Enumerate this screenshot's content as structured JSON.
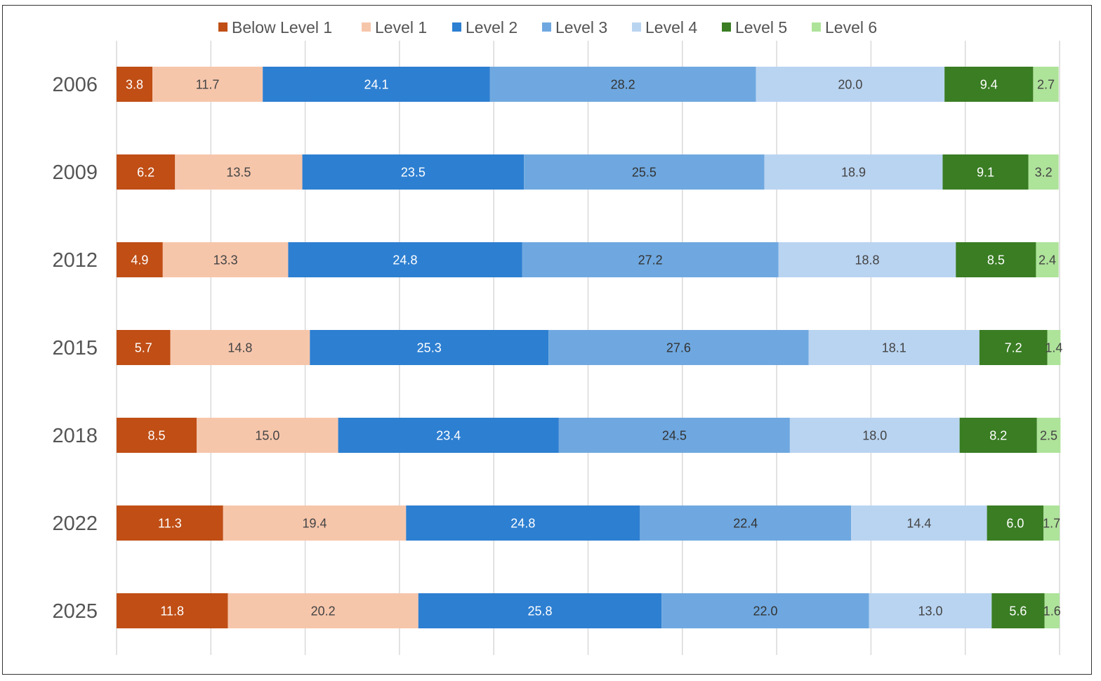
{
  "chart_data": {
    "type": "bar",
    "orientation": "horizontal",
    "stacked": true,
    "title": "",
    "xlabel": "",
    "ylabel": "",
    "xlim": [
      0,
      100
    ],
    "grid": true,
    "legend_position": "top-center",
    "categories": [
      "2006",
      "2009",
      "2012",
      "2015",
      "2018",
      "2022",
      "2025"
    ],
    "series": [
      {
        "name": "Below Level 1",
        "color": "#c04e15",
        "label_color": "#ffffff",
        "values": [
          3.8,
          6.2,
          4.9,
          5.7,
          8.5,
          11.3,
          11.8
        ]
      },
      {
        "name": "Level 1",
        "color": "#f6c6ab",
        "label_color": "#444444",
        "values": [
          11.7,
          13.5,
          13.3,
          14.8,
          15.0,
          19.4,
          20.2
        ]
      },
      {
        "name": "Level 2",
        "color": "#2d7fd1",
        "label_color": "#ffffff",
        "values": [
          24.1,
          23.5,
          24.8,
          25.3,
          23.4,
          24.8,
          25.8
        ]
      },
      {
        "name": "Level 3",
        "color": "#6fa8e0",
        "label_color": "#333333",
        "values": [
          28.2,
          25.5,
          27.2,
          27.6,
          24.5,
          22.4,
          22.0
        ]
      },
      {
        "name": "Level 4",
        "color": "#b9d4f1",
        "label_color": "#444444",
        "values": [
          20.0,
          18.9,
          18.8,
          18.1,
          18.0,
          14.4,
          13.0
        ]
      },
      {
        "name": "Level 5",
        "color": "#3a7d23",
        "label_color": "#ffffff",
        "values": [
          9.4,
          9.1,
          8.5,
          7.2,
          8.2,
          6.0,
          5.6
        ]
      },
      {
        "name": "Level 6",
        "color": "#aee39a",
        "label_color": "#444444",
        "values": [
          2.7,
          3.2,
          2.4,
          1.4,
          2.5,
          1.7,
          1.6
        ]
      }
    ]
  }
}
